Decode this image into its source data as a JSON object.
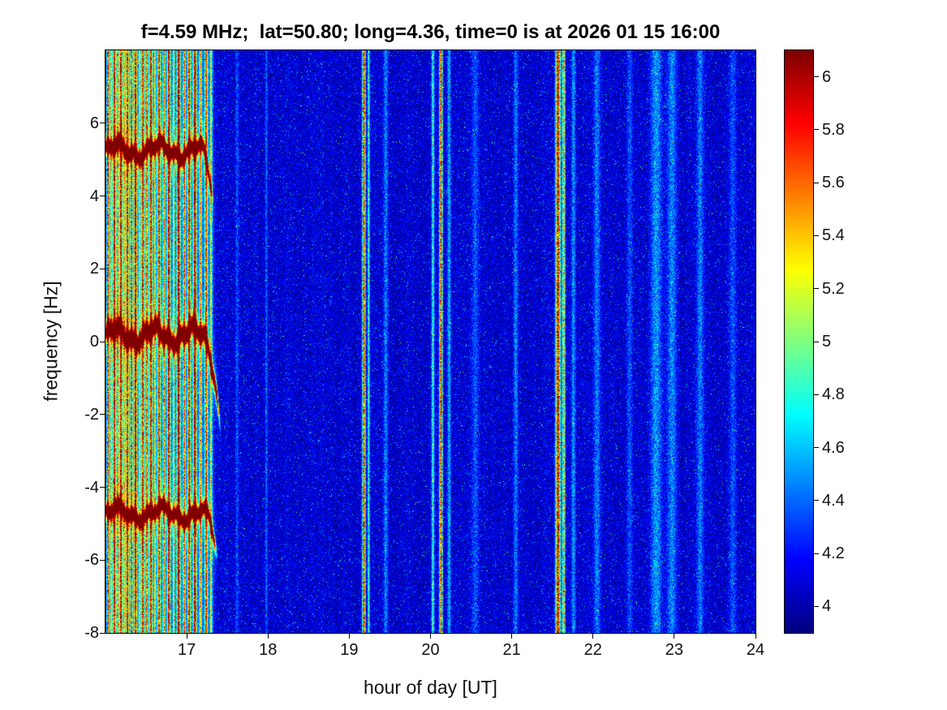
{
  "chart_data": {
    "type": "heatmap",
    "title": "f=4.59 MHz;  lat=50.80; long=4.36, time=0 is at 2026 01 15 16:00",
    "xlabel": "hour of day [UT]",
    "ylabel": "frequency [Hz]",
    "xlim": [
      16,
      24
    ],
    "ylim": [
      -8,
      8
    ],
    "clim": [
      3.9,
      6.1
    ],
    "colormap": "jet",
    "grid": false,
    "legend": "colorbar-right",
    "x_ticks": {
      "values": [
        17,
        18,
        19,
        20,
        21,
        22,
        23,
        24
      ],
      "labels": [
        "17",
        "18",
        "19",
        "20",
        "21",
        "22",
        "23",
        "24"
      ]
    },
    "y_ticks": {
      "values": [
        6,
        4,
        2,
        0,
        -2,
        -4,
        -6,
        -8
      ],
      "labels": [
        "6",
        "4",
        "2",
        "0",
        "-2",
        "-4",
        "-6",
        "-8"
      ]
    },
    "colorbar_ticks": {
      "values": [
        6,
        5.8,
        5.6,
        5.4,
        5.2,
        5,
        4.8,
        4.6,
        4.4,
        4.2,
        4
      ],
      "labels": [
        "6",
        "5.8",
        "5.6",
        "5.4",
        "5.2",
        "5",
        "4.8",
        "4.6",
        "4.4",
        "4.2",
        "4"
      ]
    },
    "background_noise": {
      "floor": 4.05,
      "sigma": 0.16,
      "speckle_prob": 0.018
    },
    "elevated_regions": [
      {
        "t0": 16.0,
        "t1": 17.36,
        "extra": 0.3
      }
    ],
    "vertical_bands": [
      [
        16.03,
        0.01,
        1.7
      ],
      [
        16.07,
        0.008,
        1.1
      ],
      [
        16.11,
        0.012,
        2.0
      ],
      [
        16.15,
        0.009,
        1.4
      ],
      [
        16.19,
        0.012,
        2.0
      ],
      [
        16.23,
        0.008,
        1.2
      ],
      [
        16.27,
        0.012,
        1.8
      ],
      [
        16.32,
        0.01,
        1.6
      ],
      [
        16.37,
        0.012,
        2.1
      ],
      [
        16.42,
        0.008,
        1.1
      ],
      [
        16.46,
        0.012,
        1.8
      ],
      [
        16.51,
        0.01,
        1.5
      ],
      [
        16.56,
        0.012,
        1.9
      ],
      [
        16.61,
        0.008,
        1.2
      ],
      [
        16.66,
        0.012,
        1.7
      ],
      [
        16.72,
        0.01,
        1.4
      ],
      [
        16.78,
        0.013,
        1.9
      ],
      [
        16.84,
        0.008,
        1.1
      ],
      [
        16.9,
        0.014,
        2.1
      ],
      [
        16.97,
        0.01,
        1.5
      ],
      [
        17.03,
        0.012,
        1.8
      ],
      [
        17.1,
        0.014,
        2.0
      ],
      [
        17.17,
        0.01,
        1.3
      ],
      [
        17.24,
        0.012,
        1.6
      ],
      [
        17.3,
        0.009,
        1.1
      ],
      [
        17.62,
        0.015,
        0.3
      ],
      [
        17.98,
        0.01,
        0.35
      ],
      [
        19.18,
        0.013,
        1.95
      ],
      [
        19.24,
        0.009,
        0.9
      ],
      [
        19.45,
        0.02,
        0.45
      ],
      [
        20.03,
        0.012,
        0.85
      ],
      [
        20.13,
        0.013,
        1.95
      ],
      [
        20.23,
        0.015,
        0.55
      ],
      [
        20.55,
        0.03,
        0.3
      ],
      [
        21.05,
        0.02,
        0.4
      ],
      [
        21.57,
        0.02,
        2.1
      ],
      [
        21.64,
        0.012,
        1.5
      ],
      [
        21.76,
        0.018,
        0.5
      ],
      [
        22.05,
        0.03,
        0.4
      ],
      [
        22.45,
        0.025,
        0.3
      ],
      [
        22.78,
        0.05,
        0.5
      ],
      [
        22.97,
        0.04,
        0.45
      ],
      [
        23.32,
        0.03,
        0.4
      ],
      [
        23.72,
        0.03,
        0.28
      ]
    ],
    "doppler_traces": [
      {
        "f0": 5.25,
        "t0": 16.0,
        "t1": 17.33,
        "amp1": 0.18,
        "per1": 0.52,
        "amp2": 0.1,
        "per2": 0.17,
        "phase": 1.2,
        "a": 2.4,
        "sigma": 0.13,
        "halo": 0.45,
        "tail_t": 17.14,
        "tail_k": 38
      },
      {
        "f0": 0.18,
        "t0": 16.0,
        "t1": 17.42,
        "amp1": 0.2,
        "per1": 0.48,
        "amp2": 0.1,
        "per2": 0.15,
        "phase": 0.4,
        "a": 2.4,
        "sigma": 0.16,
        "halo": 0.45,
        "tail_t": 17.2,
        "tail_k": 55
      },
      {
        "f0": -4.72,
        "t0": 16.0,
        "t1": 17.38,
        "amp1": 0.16,
        "per1": 0.55,
        "amp2": 0.09,
        "per2": 0.18,
        "phase": 2.1,
        "a": 2.3,
        "sigma": 0.13,
        "halo": 0.4,
        "tail_t": 17.18,
        "tail_k": 30
      }
    ]
  }
}
